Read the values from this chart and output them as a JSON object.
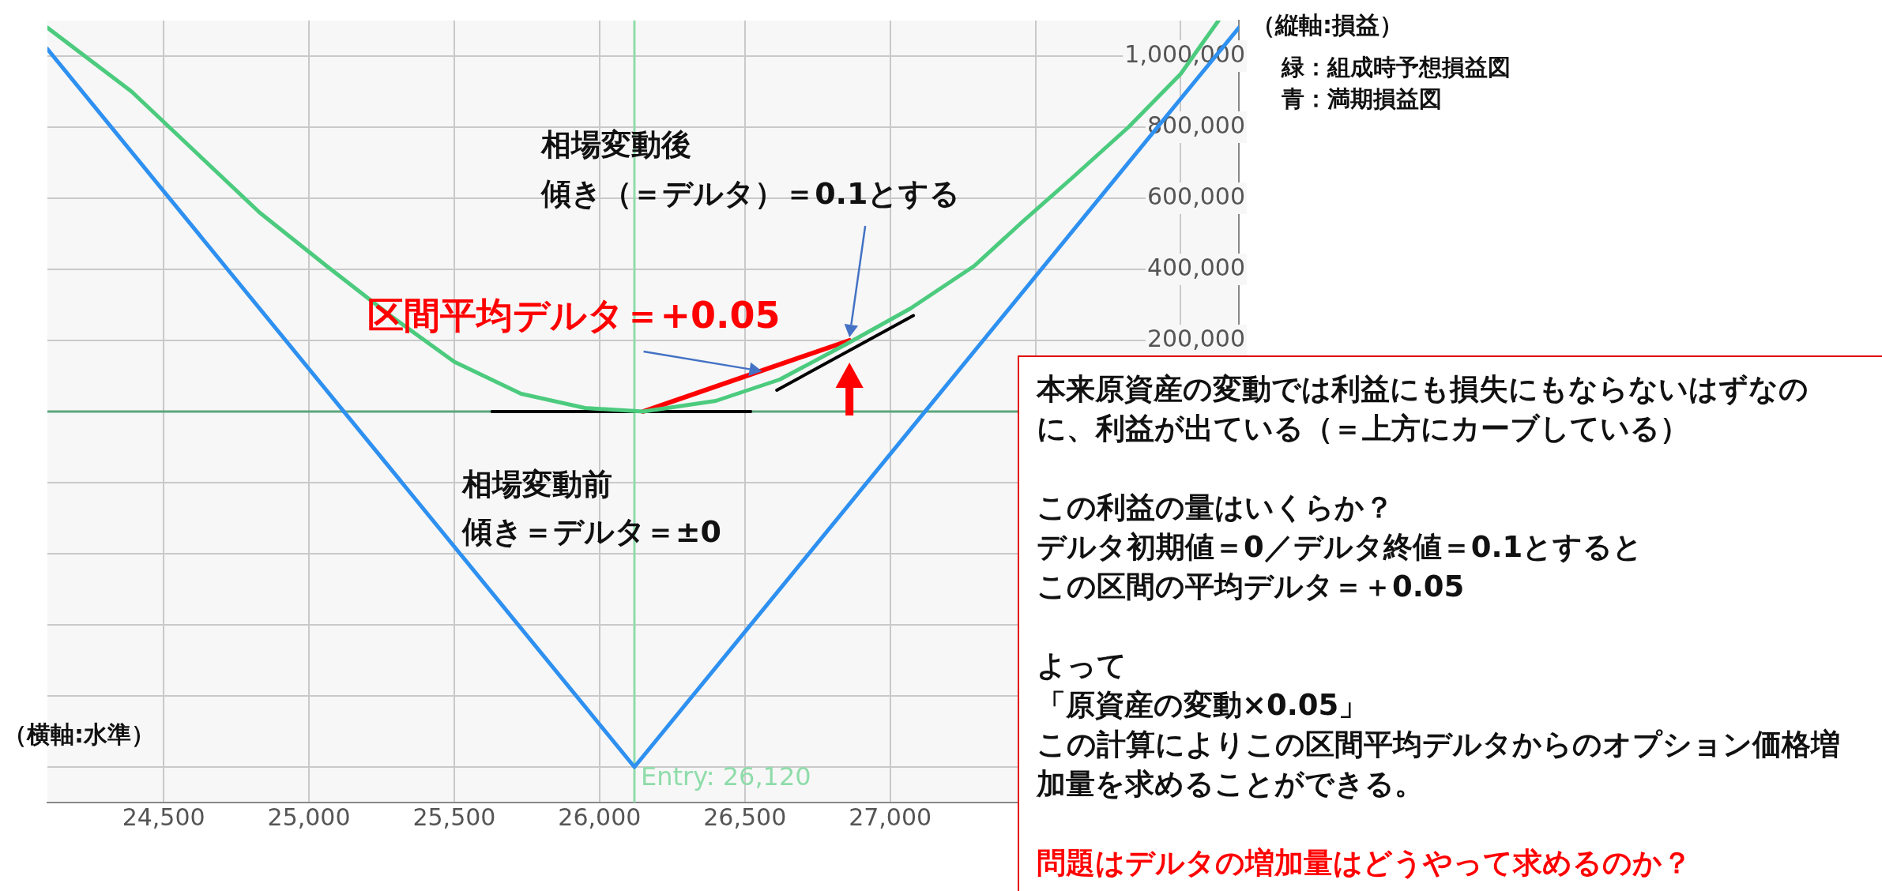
{
  "chart_data": {
    "type": "line",
    "xlabel": "（横軸:水準）",
    "ylabel": "（縦軸:損益）",
    "xlim": [
      24100,
      28200
    ],
    "ylim": [
      -1100000,
      1100000
    ],
    "xticks": [
      {
        "value": 24500,
        "label": "24,500"
      },
      {
        "value": 25000,
        "label": "25,000"
      },
      {
        "value": 25500,
        "label": "25,500"
      },
      {
        "value": 26000,
        "label": "26,000"
      },
      {
        "value": 26500,
        "label": "26,500"
      },
      {
        "value": 27000,
        "label": "27,000"
      },
      {
        "value": 27500,
        "label": null
      },
      {
        "value": 28000,
        "label": null
      }
    ],
    "yticks": [
      {
        "value": -1000000,
        "label": null
      },
      {
        "value": -800000,
        "label": null
      },
      {
        "value": -600000,
        "label": null
      },
      {
        "value": -400000,
        "label": null
      },
      {
        "value": -200000,
        "label": null
      },
      {
        "value": 0,
        "label": null
      },
      {
        "value": 200000,
        "label": "200,000"
      },
      {
        "value": 400000,
        "label": "400,000"
      },
      {
        "value": 600000,
        "label": "600,000"
      },
      {
        "value": 800000,
        "label": "800,000"
      },
      {
        "value": 1000000,
        "label": "1,000,000"
      }
    ],
    "grid": true,
    "series": [
      {
        "color": "#4ccb7e",
        "x": [
          24100,
          24390,
          24610,
          24830,
          25060,
          25280,
          25500,
          25730,
          25950,
          26150,
          26400,
          26620,
          26850,
          27070,
          27290,
          27450,
          27630,
          27820,
          28000,
          28130
        ],
        "values": [
          1080000,
          900000,
          730000,
          560000,
          410000,
          270000,
          140000,
          50000,
          10000,
          0,
          30000,
          90000,
          190000,
          290000,
          410000,
          530000,
          660000,
          800000,
          950000,
          1100000
        ]
      },
      {
        "color": "#2e90f0",
        "x": [
          24100,
          26120,
          28200
        ],
        "values": [
          1020000,
          -1000000,
          1080000
        ]
      },
      {
        "color": "#000000",
        "x": [
          25630,
          26520
        ],
        "values": [
          0,
          0
        ]
      },
      {
        "color": "#ff0000",
        "x": [
          26150,
          26860
        ],
        "values": [
          0,
          200000
        ]
      },
      {
        "color": "#000000",
        "x": [
          26610,
          27080
        ],
        "values": [
          60000,
          270000
        ]
      }
    ],
    "ref_lines": [
      {
        "axis": "x",
        "value": 26120,
        "label": "Entry: 26,120",
        "color": "#8fdcaa"
      },
      {
        "axis": "y",
        "value": 0,
        "color": "#5aa67c"
      }
    ],
    "annotations": [
      "緑：組成時予想損益図",
      "青：満期損益図",
      "相場変動後",
      "傾き（＝デルタ）＝0.1とする",
      "区間平均デルタ＝+0.05",
      "相場変動前",
      "傾き＝デルタ＝±0",
      "本来原資産の変動では利益にも損失にもならないはずなのに、利益が出ている（＝上方にカーブしている）",
      "この利益の量はいくらか？",
      "デルタ初期値＝0／デルタ終値＝0.1とすると",
      "この区間の平均デルタ＝＋0.05",
      "よって",
      "「原資産の変動×0.05」",
      "この計算によりこの区間平均デルタからのオプション価格増加量を求めることができる。",
      "問題はデルタの増加量はどうやって求めるのか？"
    ]
  }
}
